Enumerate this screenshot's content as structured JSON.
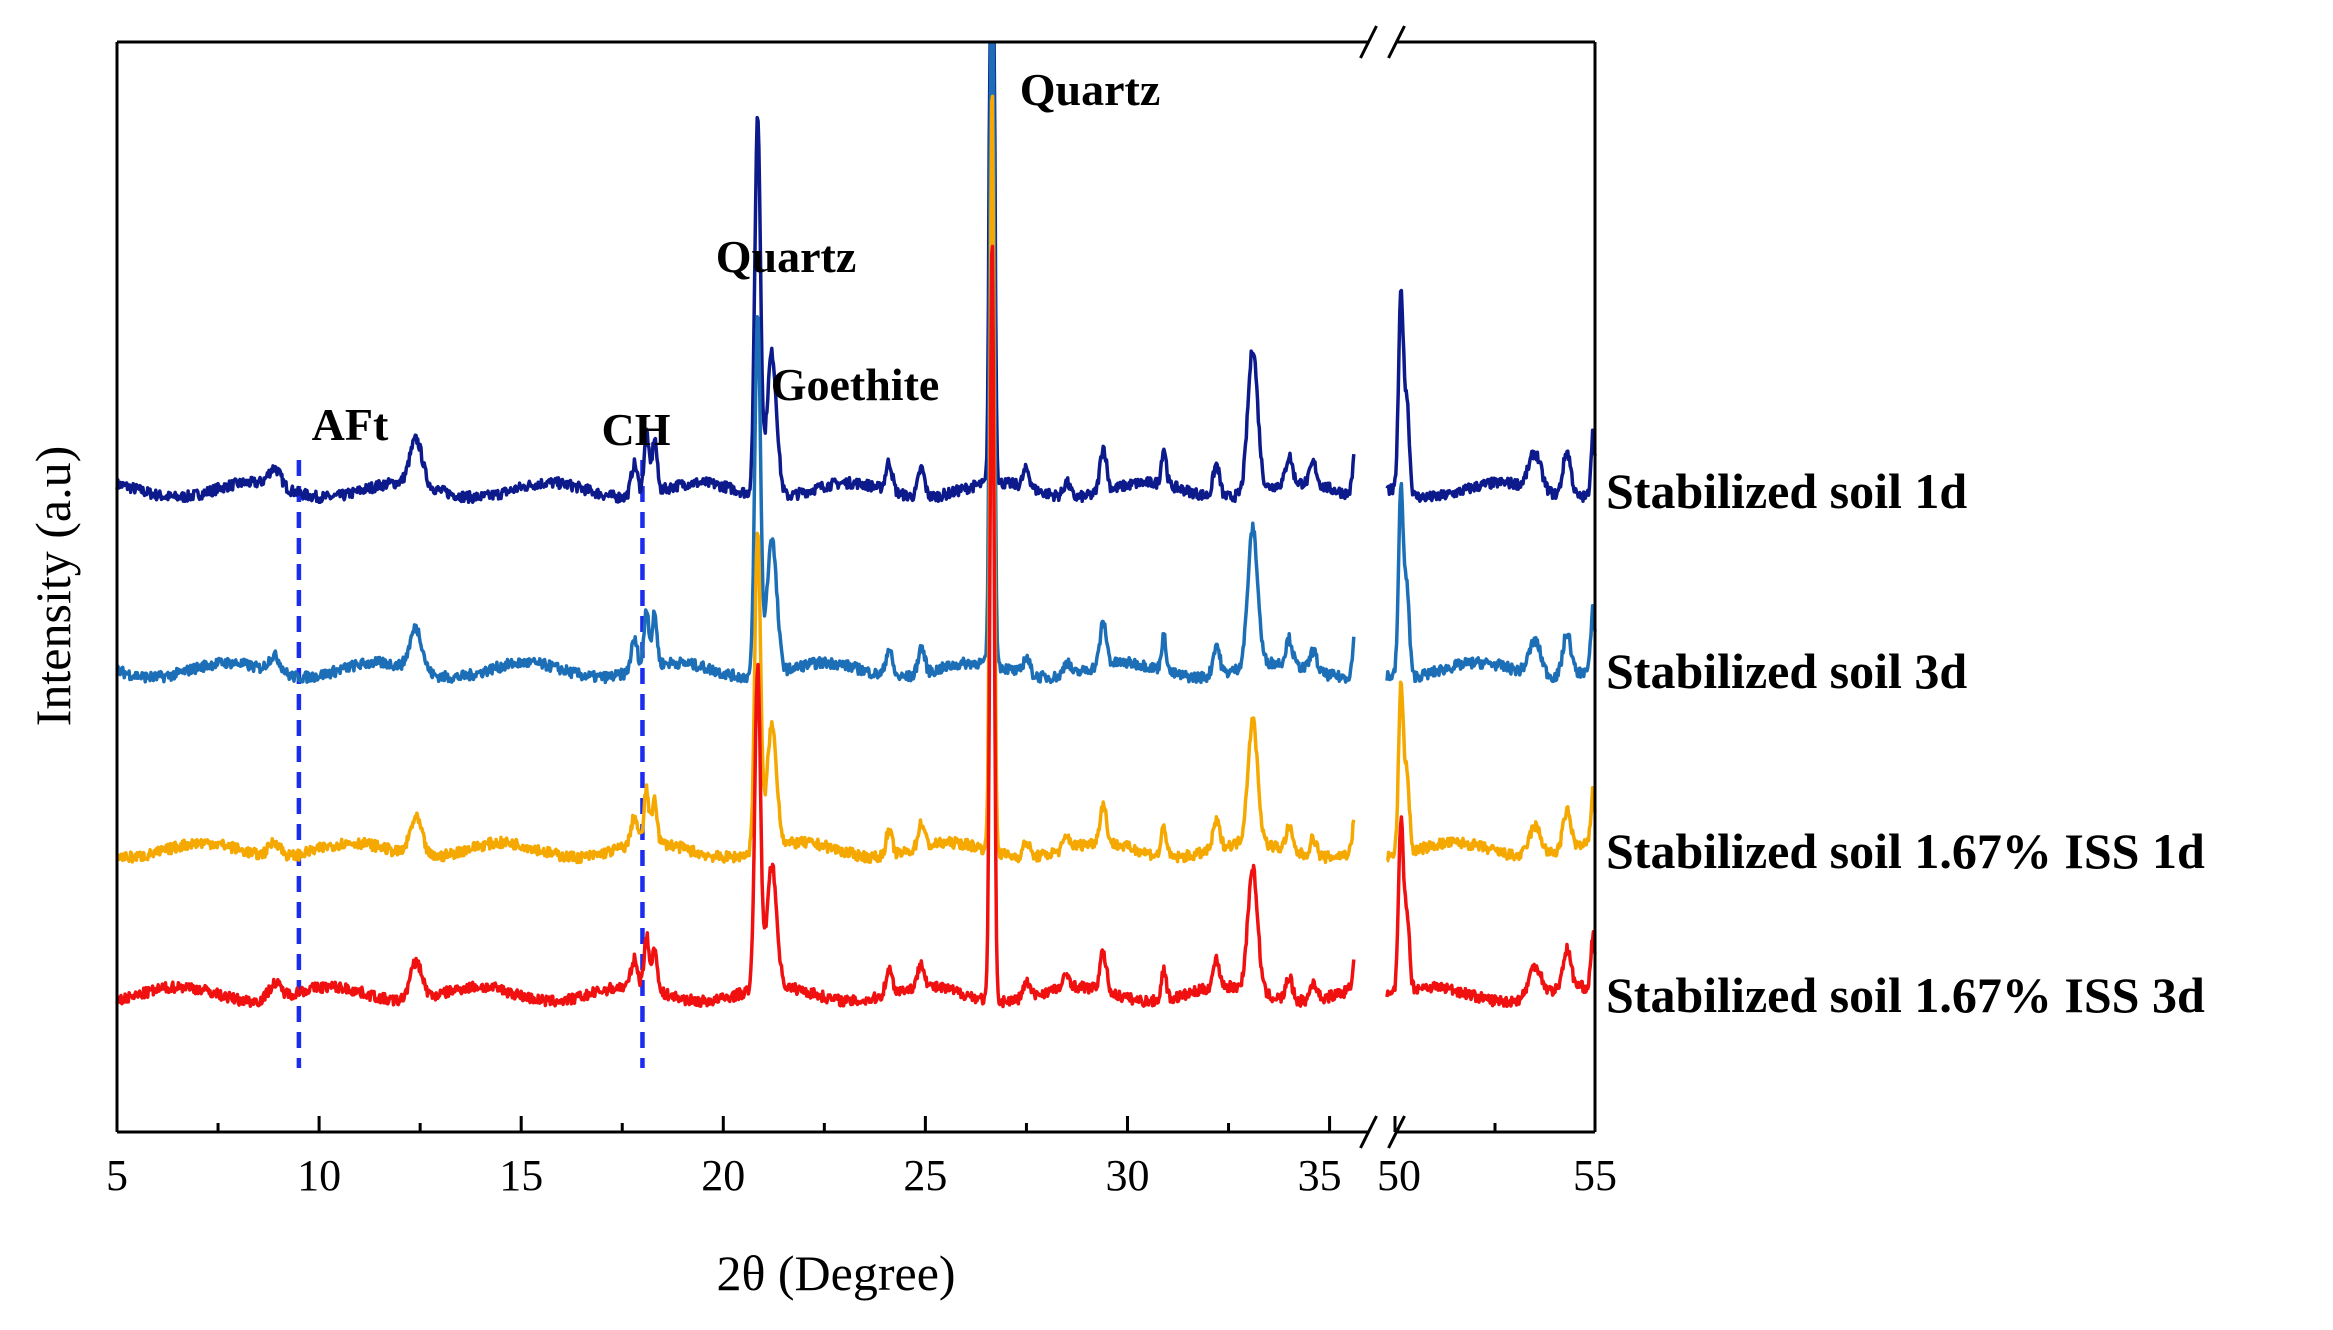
{
  "chart_data": {
    "type": "line",
    "title": "",
    "xlabel": "2θ (Degree)",
    "ylabel": "Intensity (a.u)",
    "x_break": {
      "from": 36,
      "to": 50
    },
    "x_segments": [
      {
        "range": [
          5,
          36
        ],
        "ticks": [
          5,
          10,
          15,
          20,
          25,
          30,
          35
        ]
      },
      {
        "range": [
          50,
          55
        ],
        "ticks": [
          50,
          55
        ]
      }
    ],
    "tick_labels": [
      "5",
      "10",
      "15",
      "20",
      "25",
      "30",
      "35",
      "50",
      "55"
    ],
    "y_ticks_shown": false,
    "grid": false,
    "annotations": [
      {
        "text": "AFt",
        "x": 9.5,
        "marker": "dashed-line"
      },
      {
        "text": "CH",
        "x": 18.0,
        "marker": "dashed-line"
      },
      {
        "text": "Quartz",
        "x": 20.85
      },
      {
        "text": "Goethite",
        "x": 21.2
      },
      {
        "text": "Quartz",
        "x": 26.65
      }
    ],
    "peaks": [
      {
        "x": 8.9,
        "h": 0.1,
        "w": 0.15
      },
      {
        "x": 12.4,
        "h": 0.25,
        "w": 0.15
      },
      {
        "x": 17.8,
        "h": 0.18,
        "w": 0.08
      },
      {
        "x": 18.1,
        "h": 0.35,
        "w": 0.06
      },
      {
        "x": 18.3,
        "h": 0.3,
        "w": 0.06
      },
      {
        "x": 20.85,
        "h": 2.1,
        "w": 0.07
      },
      {
        "x": 21.2,
        "h": 0.8,
        "w": 0.12
      },
      {
        "x": 24.1,
        "h": 0.16,
        "w": 0.08
      },
      {
        "x": 24.9,
        "h": 0.16,
        "w": 0.08
      },
      {
        "x": 26.65,
        "h": 5.0,
        "w": 0.05
      },
      {
        "x": 27.5,
        "h": 0.1,
        "w": 0.08
      },
      {
        "x": 28.5,
        "h": 0.08,
        "w": 0.08
      },
      {
        "x": 29.4,
        "h": 0.25,
        "w": 0.08
      },
      {
        "x": 30.9,
        "h": 0.2,
        "w": 0.06
      },
      {
        "x": 32.2,
        "h": 0.18,
        "w": 0.08
      },
      {
        "x": 33.1,
        "h": 0.8,
        "w": 0.12
      },
      {
        "x": 34.0,
        "h": 0.15,
        "w": 0.08
      },
      {
        "x": 34.6,
        "h": 0.12,
        "w": 0.08
      },
      {
        "x": 35.7,
        "h": 0.5,
        "w": 0.08
      },
      {
        "x": 50.15,
        "h": 1.1,
        "w": 0.06
      },
      {
        "x": 50.3,
        "h": 0.5,
        "w": 0.06
      },
      {
        "x": 53.5,
        "h": 0.2,
        "w": 0.15
      },
      {
        "x": 54.3,
        "h": 0.25,
        "w": 0.1
      },
      {
        "x": 54.95,
        "h": 0.35,
        "w": 0.05
      }
    ],
    "series": [
      {
        "name": "Stabilized soil 1d",
        "color": "#0d1a8c",
        "offset": 3.0,
        "peak_scale": 1.0
      },
      {
        "name": "Stabilized soil 3d",
        "color": "#1c6fb7",
        "offset": 2.0,
        "peak_scale": 0.95
      },
      {
        "name": "Stabilized soil 1.67% ISS 1d",
        "color": "#f5a800",
        "offset": 1.0,
        "peak_scale": 0.85
      },
      {
        "name": "Stabilized soil 1.67% ISS 3d",
        "color": "#f01010",
        "offset": 0.2,
        "peak_scale": 0.85
      }
    ],
    "guide_line_color": "#1a2cf0"
  }
}
